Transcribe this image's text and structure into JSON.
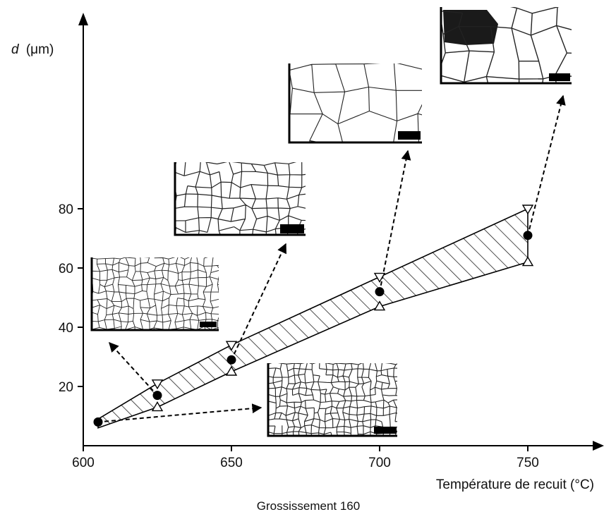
{
  "chart_data": {
    "type": "scatter",
    "title": "",
    "xlabel": "Température de recuit (°C)",
    "ylabel_italic": "d",
    "ylabel_unit": "(μm)",
    "caption": "Grossissement 160",
    "xlim": [
      600,
      750
    ],
    "ylim": [
      0,
      80
    ],
    "x_ticks": [
      600,
      650,
      700,
      750
    ],
    "y_ticks": [
      20,
      40,
      60,
      80
    ],
    "series": [
      {
        "marker": "filled-circle",
        "x": [
          605,
          625,
          650,
          700,
          750
        ],
        "y": [
          8,
          17,
          29,
          52,
          71
        ]
      },
      {
        "marker": "open-triangle-down",
        "x": [
          625,
          650,
          700,
          750
        ],
        "y": [
          21,
          34,
          57,
          80
        ]
      },
      {
        "marker": "open-triangle-up",
        "x": [
          625,
          650,
          700,
          750
        ],
        "y": [
          13,
          25,
          47,
          62
        ]
      }
    ],
    "band": {
      "fill": "hatched",
      "upper": [
        [
          605,
          9
        ],
        [
          625,
          21
        ],
        [
          650,
          34
        ],
        [
          700,
          57
        ],
        [
          750,
          80
        ]
      ],
      "lower": [
        [
          605,
          6
        ],
        [
          625,
          13
        ],
        [
          650,
          25
        ],
        [
          700,
          47
        ],
        [
          750,
          62
        ]
      ]
    },
    "micrographs": [
      {
        "name": "micrograph-605",
        "source": [
          605,
          8
        ],
        "grain": "very-fine"
      },
      {
        "name": "micrograph-625",
        "source": [
          625,
          17
        ],
        "grain": "fine"
      },
      {
        "name": "micrograph-650",
        "source": [
          650,
          29
        ],
        "grain": "medium"
      },
      {
        "name": "micrograph-700",
        "source": [
          700,
          52
        ],
        "grain": "coarse"
      },
      {
        "name": "micrograph-750",
        "source": [
          750,
          71
        ],
        "grain": "very-coarse"
      }
    ]
  }
}
